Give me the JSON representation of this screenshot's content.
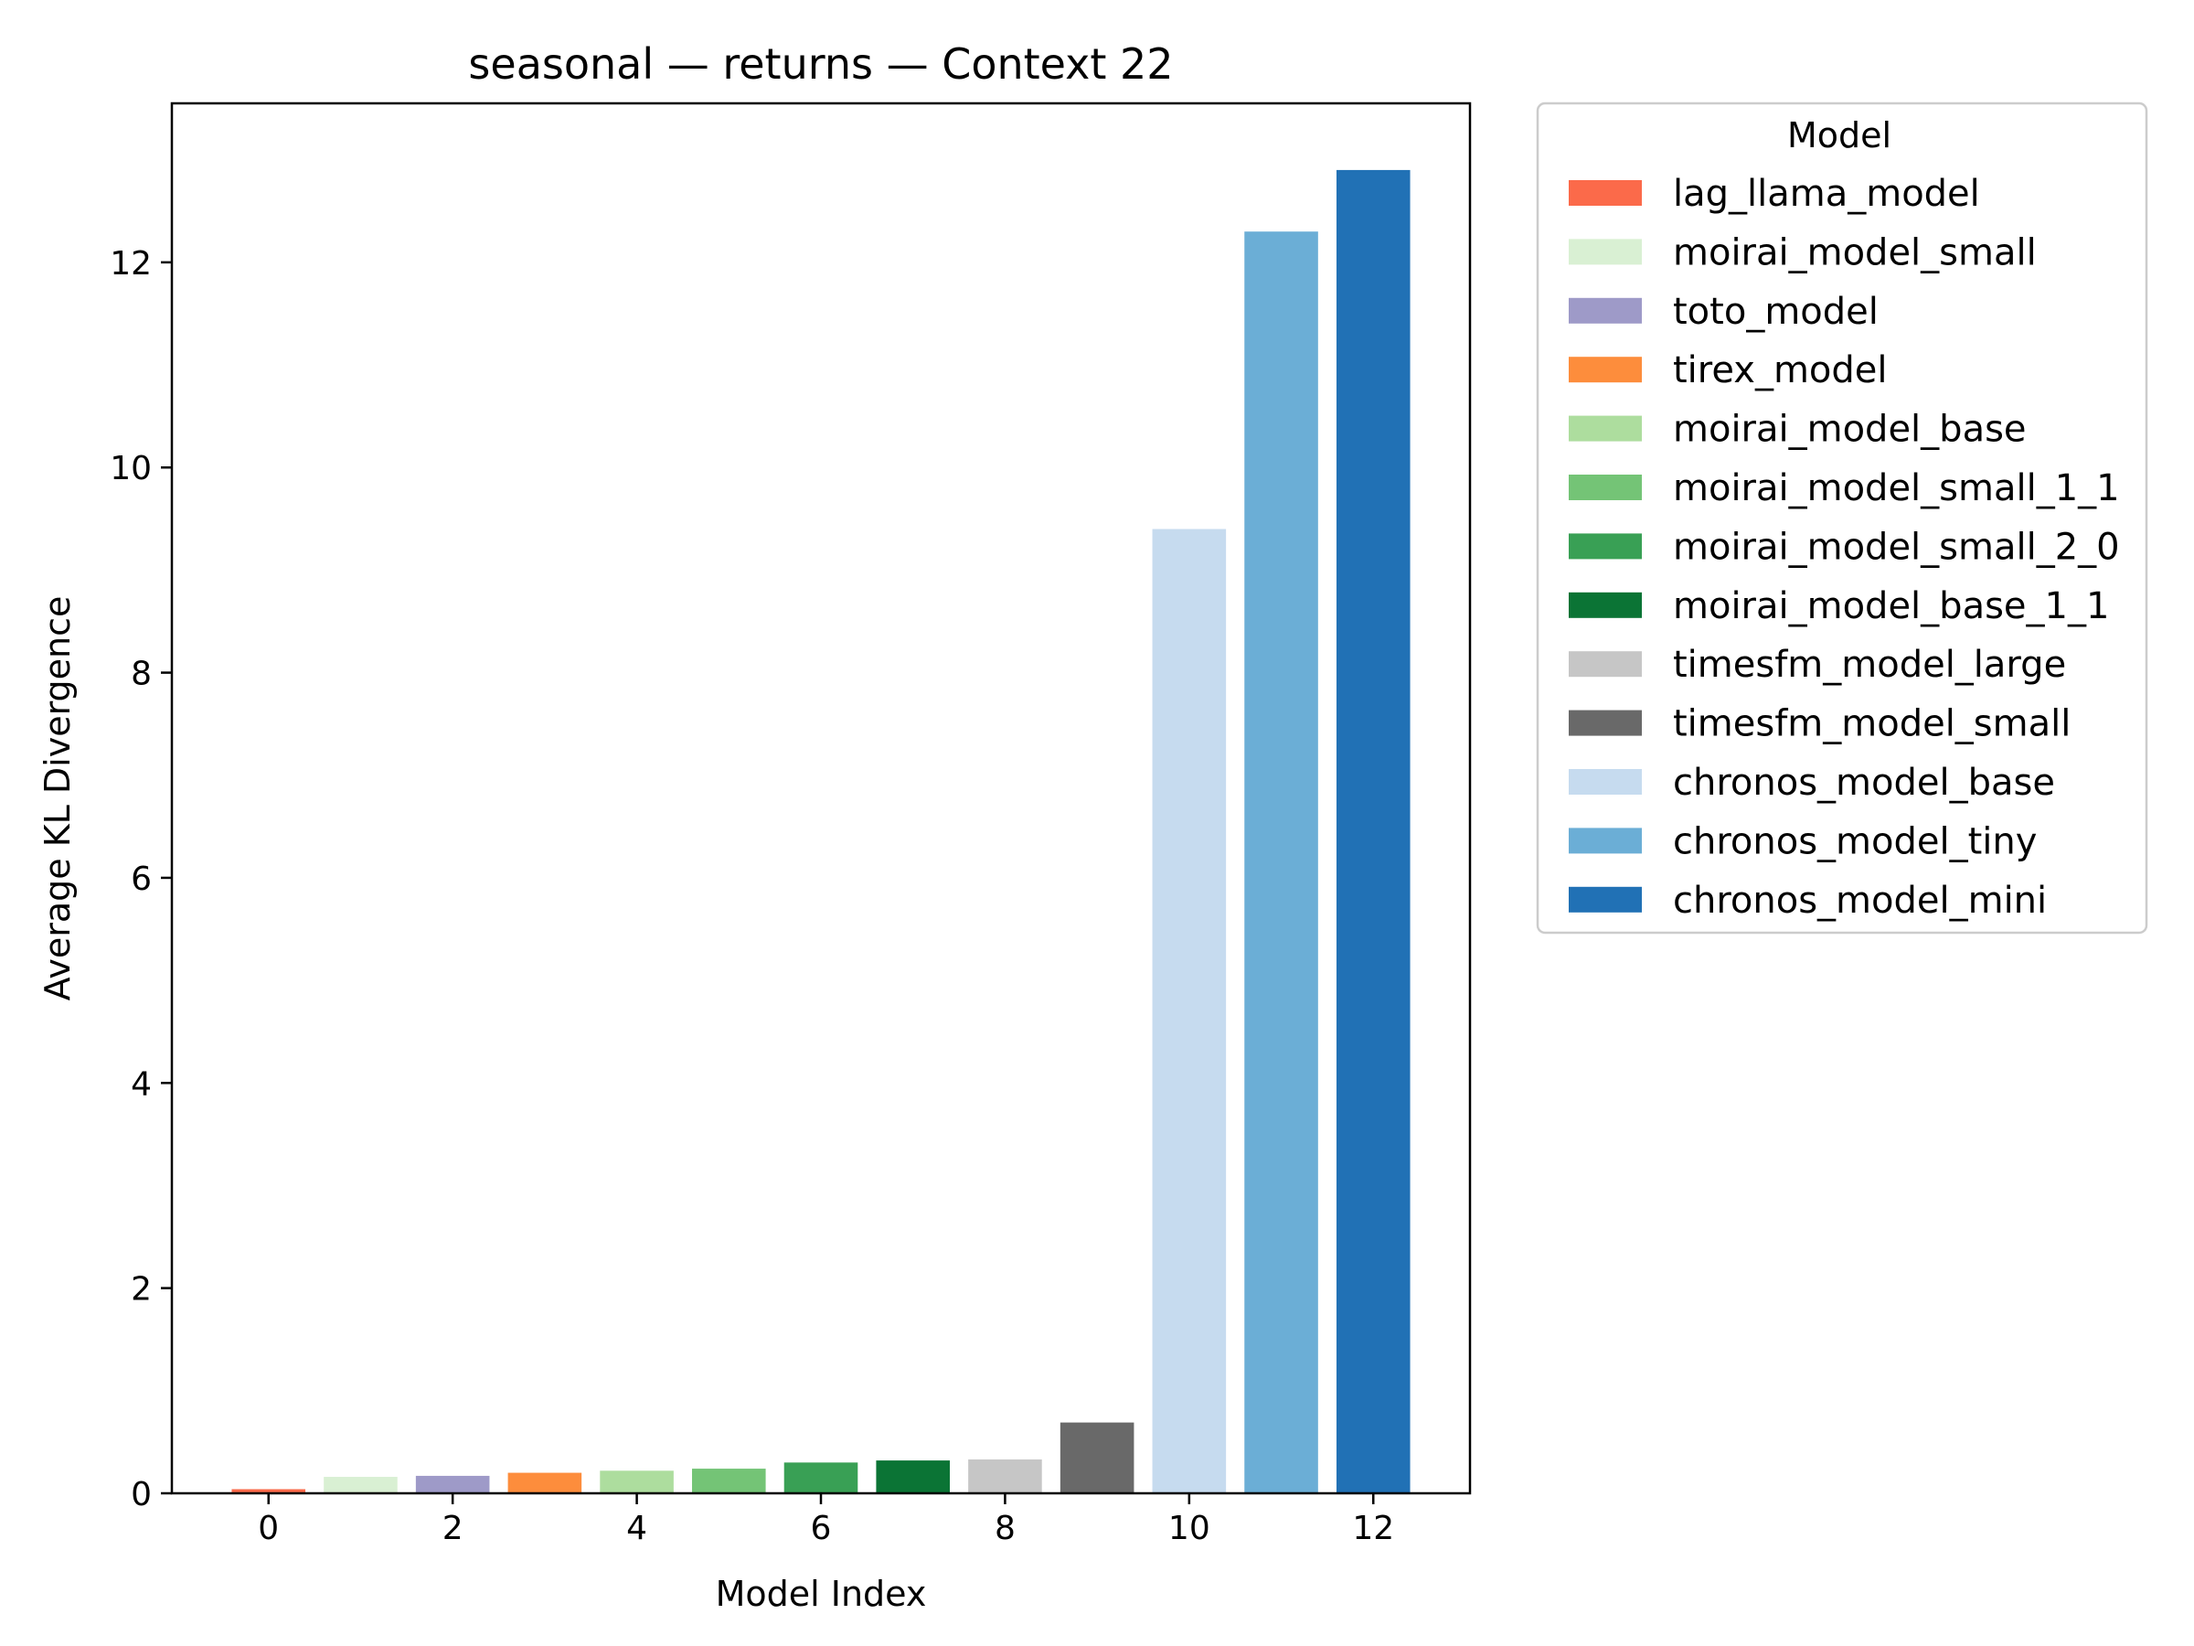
{
  "chart_data": {
    "type": "bar",
    "title": "seasonal — returns — Context 22",
    "xlabel": "Model Index",
    "ylabel": "Average KL Divergence",
    "xlim": [
      -1.05,
      13.05
    ],
    "ylim": [
      0,
      13.55
    ],
    "xticks": [
      0,
      2,
      4,
      6,
      8,
      10,
      12
    ],
    "yticks": [
      0,
      2,
      4,
      6,
      8,
      10,
      12
    ],
    "grid": false,
    "legend": {
      "title": "Model",
      "placement": "outside-top-right"
    },
    "series": [
      {
        "name": "lag_llama_model",
        "x": 0,
        "value": 0.04,
        "color": "#fb6a4a"
      },
      {
        "name": "moirai_model_small",
        "x": 1,
        "value": 0.16,
        "color": "#d9f0d3"
      },
      {
        "name": "toto_model",
        "x": 2,
        "value": 0.17,
        "color": "#9e9ac8"
      },
      {
        "name": "tirex_model",
        "x": 3,
        "value": 0.2,
        "color": "#fd8d3c"
      },
      {
        "name": "moirai_model_base",
        "x": 4,
        "value": 0.22,
        "color": "#addd9e"
      },
      {
        "name": "moirai_model_small_1_1",
        "x": 5,
        "value": 0.24,
        "color": "#74c476"
      },
      {
        "name": "moirai_model_small_2_0",
        "x": 6,
        "value": 0.3,
        "color": "#39a055"
      },
      {
        "name": "moirai_model_base_1_1",
        "x": 7,
        "value": 0.32,
        "color": "#0b7435"
      },
      {
        "name": "timesfm_model_large",
        "x": 8,
        "value": 0.33,
        "color": "#c6c6c6"
      },
      {
        "name": "timesfm_model_small",
        "x": 9,
        "value": 0.69,
        "color": "#696969"
      },
      {
        "name": "chronos_model_base",
        "x": 10,
        "value": 9.4,
        "color": "#c6dbef"
      },
      {
        "name": "chronos_model_tiny",
        "x": 11,
        "value": 12.3,
        "color": "#6baed6"
      },
      {
        "name": "chronos_model_mini",
        "x": 12,
        "value": 12.9,
        "color": "#2171b5"
      }
    ]
  }
}
